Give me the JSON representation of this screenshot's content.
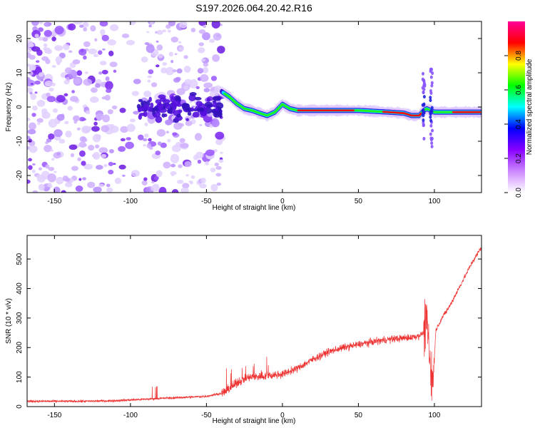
{
  "title": "S197.2026.064.20.42.R16",
  "chart_data": [
    {
      "type": "heatmap",
      "name": "spectrogram",
      "xlabel": "Height of straight line (km)",
      "ylabel": "Frequency (Hz)",
      "xlim": [
        -168,
        131
      ],
      "ylim": [
        -25,
        25
      ],
      "xticks": [
        -150,
        -100,
        -50,
        0,
        50,
        100
      ],
      "yticks": [
        -20,
        -10,
        0,
        10,
        20
      ],
      "colorbar": {
        "label": "Normalized spectral amplitude",
        "range": [
          0,
          1
        ],
        "ticks": [
          "0.0",
          "0.2",
          "0.4",
          "0.6",
          "0.8"
        ],
        "tick_values": [
          0.0,
          0.2,
          0.4,
          0.6,
          0.8
        ],
        "colors": [
          "#ffffff",
          "#cc88ff",
          "#8800ff",
          "#0000ff",
          "#00ffff",
          "#00ff00",
          "#ffff00",
          "#ff0000",
          "#ff0099"
        ]
      },
      "signal_track": [
        [
          -40,
          4.5
        ],
        [
          -35,
          3.0
        ],
        [
          -30,
          1.0
        ],
        [
          -25,
          -0.5
        ],
        [
          -20,
          -1.0
        ],
        [
          -15,
          -1.8
        ],
        [
          -10,
          -2.5
        ],
        [
          -5,
          -1.5
        ],
        [
          0,
          0.8
        ],
        [
          5,
          -0.5
        ],
        [
          10,
          -1.0
        ],
        [
          30,
          -1.0
        ],
        [
          50,
          -1.0
        ],
        [
          70,
          -1.5
        ],
        [
          80,
          -1.8
        ],
        [
          85,
          -2.5
        ],
        [
          90,
          -2.5
        ],
        [
          93,
          -1.0
        ],
        [
          95,
          -0.5
        ],
        [
          100,
          -1.5
        ],
        [
          110,
          -1.5
        ],
        [
          131,
          -1.5
        ]
      ],
      "noise_region": [
        -168,
        -40
      ],
      "spike_events": [
        93,
        98
      ]
    },
    {
      "type": "line",
      "name": "snr",
      "xlabel": "Height of straight line (km)",
      "ylabel": "SNR (10 * v/v)",
      "xlim": [
        -168,
        131
      ],
      "ylim": [
        0,
        580
      ],
      "xticks": [
        -150,
        -100,
        -50,
        0,
        50,
        100
      ],
      "yticks": [
        0,
        100,
        200,
        300,
        400,
        500
      ],
      "series": [
        {
          "name": "SNR",
          "color": "#ee3333",
          "x": [
            -168,
            -150,
            -130,
            -110,
            -90,
            -80,
            -70,
            -50,
            -40,
            -35,
            -30,
            -25,
            -20,
            -10,
            0,
            10,
            20,
            30,
            40,
            50,
            60,
            70,
            80,
            85,
            90,
            93,
            95,
            97,
            99,
            101,
            105,
            110,
            115,
            120,
            125,
            131
          ],
          "values": [
            18,
            18,
            18,
            20,
            25,
            28,
            30,
            35,
            45,
            60,
            80,
            95,
            100,
            105,
            110,
            130,
            160,
            185,
            200,
            210,
            220,
            228,
            232,
            235,
            240,
            250,
            300,
            150,
            80,
            260,
            300,
            340,
            390,
            440,
            490,
            540
          ]
        }
      ]
    }
  ]
}
